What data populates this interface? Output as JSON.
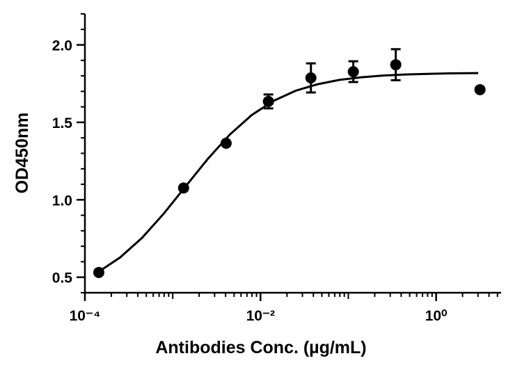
{
  "chart_data": {
    "type": "scatter",
    "x_label": "Antibodies Conc. (µg/mL)",
    "y_label": "OD450nm",
    "x_scale": "log",
    "xlim": [
      0.0001,
      5.5
    ],
    "ylim": [
      0.4,
      2.2
    ],
    "xticks": [
      {
        "value": 0.0001,
        "label": "10⁻⁴"
      },
      {
        "value": 0.01,
        "label": "10⁻²"
      },
      {
        "value": 1,
        "label": "10⁰"
      }
    ],
    "yticks": [
      0.5,
      {
        "value": 1.0,
        "label": "1.0"
      },
      1.5,
      {
        "value": 2.0,
        "label": "2.0"
      }
    ],
    "color": "#000000",
    "x": [
      0.000144,
      0.00133,
      0.00406,
      0.0123,
      0.0375,
      0.114,
      0.347,
      3.16
    ],
    "values": [
      0.531,
      1.076,
      1.365,
      1.635,
      1.787,
      1.827,
      1.872,
      1.711
    ],
    "errors": [
      null,
      null,
      null,
      0.045,
      0.094,
      0.067,
      0.1,
      null
    ],
    "fit": {
      "x": [
        0.000141,
        0.000251,
        0.000447,
        0.000794,
        0.00141,
        0.00251,
        0.00447,
        0.00794,
        0.0141,
        0.0251,
        0.0447,
        0.0794,
        0.141,
        0.251,
        0.447,
        0.794,
        1.41,
        3.02
      ],
      "values": [
        0.533,
        0.627,
        0.754,
        0.912,
        1.088,
        1.264,
        1.421,
        1.547,
        1.639,
        1.704,
        1.746,
        1.774,
        1.791,
        1.802,
        1.809,
        1.813,
        1.816,
        1.818
      ]
    }
  }
}
